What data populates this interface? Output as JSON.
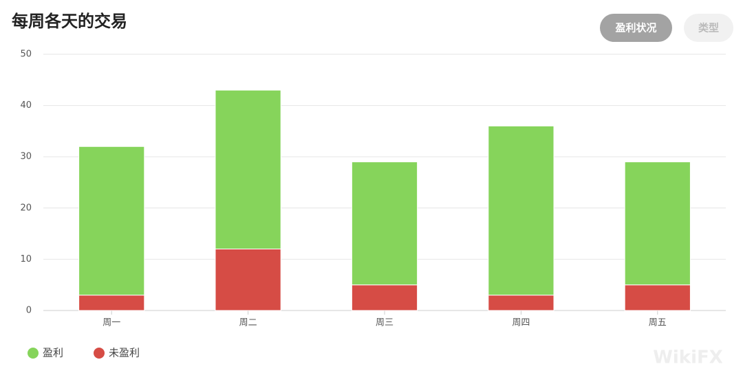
{
  "chart_data": {
    "type": "stacked-bar",
    "title": "每周各天的交易",
    "categories": [
      "周一",
      "周二",
      "周三",
      "周四",
      "周五"
    ],
    "series": [
      {
        "name": "盈利",
        "color": "#86d45b",
        "values": [
          29,
          31,
          24,
          33,
          24
        ]
      },
      {
        "name": "未盈利",
        "color": "#d64c45",
        "values": [
          3,
          12,
          5,
          3,
          5
        ]
      }
    ],
    "ylim": [
      0,
      50
    ],
    "yticks": [
      0,
      10,
      20,
      30,
      40,
      50
    ],
    "grid": true,
    "legend": "bottom-left"
  },
  "buttons": [
    "盈利状况",
    "类型"
  ],
  "watermark": "WikiFX"
}
